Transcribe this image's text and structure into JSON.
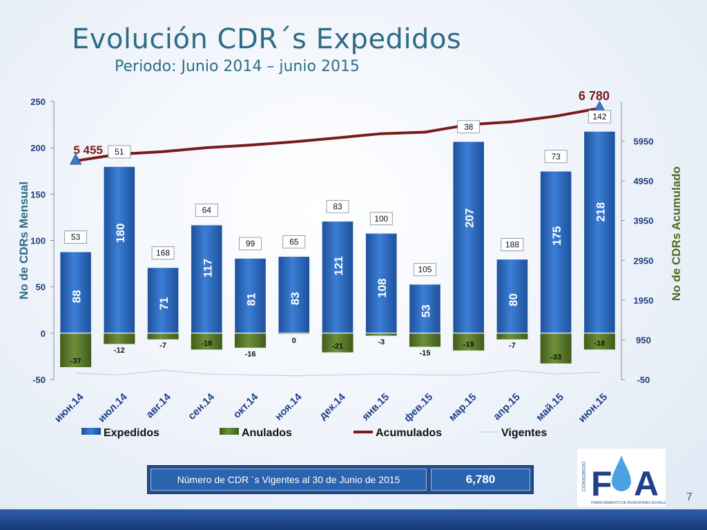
{
  "slide": {
    "title": "Evolución CDR´s Expedidos",
    "subtitle": "Periodo: Junio 2014 – junio 2015",
    "page_number": "7"
  },
  "summary": {
    "label": "Número de CDR ´s Vigentes al  30 de Junio de 2015",
    "value": "6,780"
  },
  "logo": {
    "side_text": "CONSORCIO",
    "letters": "FIA",
    "tagline": "FINANCIAMIENTO DE INVERSIONES EN AGUA"
  },
  "colors": {
    "title": "#2d6c86",
    "expedidos": "#2f6cc1",
    "anulados": "#5b7a2c",
    "acumulados": "#7a1a1a",
    "vigentes": "#b8cbe6",
    "left_axis_title": "#2d6c86",
    "right_axis_title": "#4f6a1f",
    "bottom_band": "#1f4a90"
  },
  "chart_data": {
    "type": "bar",
    "categories": [
      "июн.14",
      "июл.14",
      "авг.14",
      "сен.14",
      "окт.14",
      "ноя.14",
      "дек.14",
      "янв.15",
      "фев.15",
      "мар.15",
      "апр.15",
      "май.15",
      "июн.15"
    ],
    "series": [
      {
        "name": "Expedidos",
        "type": "bar",
        "axis": "left",
        "values": [
          88,
          180,
          71,
          117,
          81,
          83,
          121,
          108,
          53,
          207,
          80,
          175,
          218
        ]
      },
      {
        "name": "Anulados",
        "type": "bar",
        "axis": "left",
        "values": [
          -37,
          -12,
          -7,
          -18,
          -16,
          0,
          -21,
          -3,
          -15,
          -19,
          -7,
          -33,
          -18
        ]
      },
      {
        "name": "Acumulados",
        "type": "line",
        "axis": "right",
        "values": [
          5455,
          5623,
          5687,
          5786,
          5851,
          5934,
          6034,
          6139,
          6177,
          6365,
          6438,
          6580,
          6780
        ]
      },
      {
        "name": "Vigentes",
        "type": "line",
        "axis": "left",
        "values": [
          -43,
          -45,
          -40,
          -44,
          -45,
          -46,
          -45,
          -44,
          -45,
          -45,
          -40,
          -44,
          -42
        ]
      }
    ],
    "top_labels": [
      "53",
      "51",
      "168",
      "64",
      "99",
      "65",
      "83",
      "100",
      "105",
      "38",
      "188",
      "73",
      "142"
    ],
    "acumulados_annotations": {
      "first": "5 455",
      "last": "6 780"
    },
    "ylabel": "No de CDRs Mensual",
    "y2label": "No de CDRs Acumulado",
    "ylim": [
      -50,
      250
    ],
    "yticks": [
      -50,
      0,
      50,
      100,
      150,
      200,
      250
    ],
    "y2lim": [
      -50,
      6950
    ],
    "y2ticks": [
      -50,
      950,
      1950,
      2950,
      3950,
      4950,
      5950
    ],
    "legend": [
      "Expedidos",
      "Anulados",
      "Acumulados",
      "Vigentes"
    ],
    "legend_position": "bottom",
    "grid": false
  }
}
